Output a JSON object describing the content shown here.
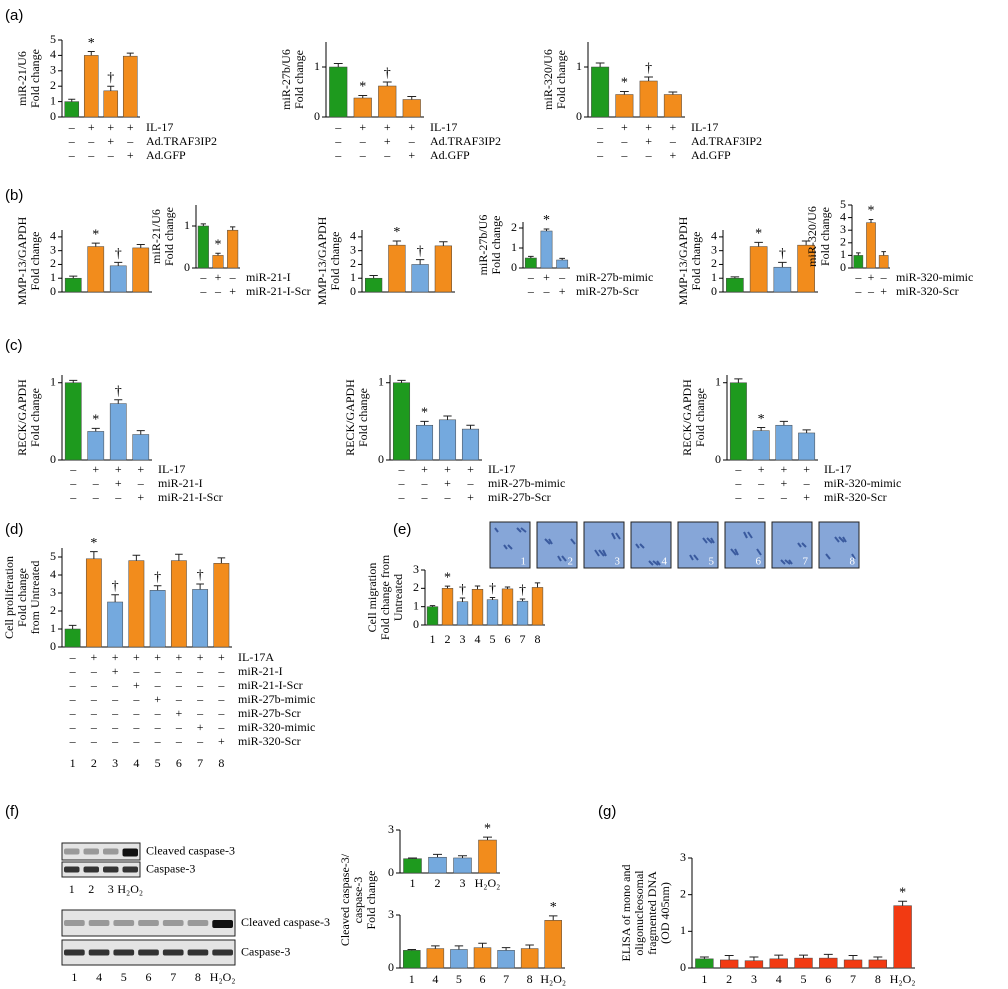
{
  "panels": [
    "(a)",
    "(b)",
    "(c)",
    "(d)",
    "(e)",
    "(f)",
    "(g)"
  ],
  "migration_images": [
    "1",
    "2",
    "3",
    "4",
    "5",
    "6",
    "7",
    "8"
  ],
  "blots": [
    {
      "bands": [
        "Cleaved caspase-3",
        "Caspase-3"
      ],
      "lanes": [
        "1",
        "2",
        "3",
        "H₂O₂"
      ]
    },
    {
      "bands": [
        "Cleaved caspase-3",
        "Caspase-3"
      ],
      "lanes": [
        "1",
        "4",
        "5",
        "6",
        "7",
        "8",
        "H₂O₂"
      ]
    }
  ],
  "chart_data": [
    {
      "type": "bar",
      "ylabel": [
        "miR-21/U6",
        "Fold change"
      ],
      "ylim": [
        0,
        5
      ],
      "yticks": [
        0,
        1,
        2,
        3,
        4,
        5
      ],
      "values": [
        1,
        4,
        1.7,
        3.95
      ],
      "errors": [
        0.15,
        0.25,
        0.3,
        0.2
      ],
      "colors": [
        "#1e9a1e",
        "#f28c1c",
        "#f28c1c",
        "#f28c1c"
      ],
      "annotations": [
        null,
        "*",
        "†",
        null
      ],
      "rows": [
        {
          "label": "IL-17",
          "signs": [
            "–",
            "+",
            "+",
            "+"
          ]
        },
        {
          "label": "Ad.TRAF3IP2",
          "signs": [
            "–",
            "–",
            "+",
            "–"
          ]
        },
        {
          "label": "Ad.GFP",
          "signs": [
            "–",
            "–",
            "–",
            "+"
          ]
        }
      ]
    },
    {
      "type": "bar",
      "ylabel": [
        "miR-27b/U6",
        "Fold change"
      ],
      "ylim": [
        0,
        1.5
      ],
      "yticks": [
        0,
        1
      ],
      "values": [
        1,
        0.38,
        0.62,
        0.35
      ],
      "errors": [
        0.07,
        0.05,
        0.08,
        0.06
      ],
      "colors": [
        "#1e9a1e",
        "#f28c1c",
        "#f28c1c",
        "#f28c1c"
      ],
      "annotations": [
        null,
        "*",
        "†",
        null
      ],
      "rows": [
        {
          "label": "IL-17",
          "signs": [
            "–",
            "+",
            "+",
            "+"
          ]
        },
        {
          "label": "Ad.TRAF3IP2",
          "signs": [
            "–",
            "–",
            "+",
            "–"
          ]
        },
        {
          "label": "Ad.GFP",
          "signs": [
            "–",
            "–",
            "–",
            "+"
          ]
        }
      ]
    },
    {
      "type": "bar",
      "ylabel": [
        "miR-320/U6",
        "Fold change"
      ],
      "ylim": [
        0,
        1.5
      ],
      "yticks": [
        0,
        1
      ],
      "values": [
        1,
        0.45,
        0.72,
        0.45
      ],
      "errors": [
        0.08,
        0.06,
        0.08,
        0.05
      ],
      "colors": [
        "#1e9a1e",
        "#f28c1c",
        "#f28c1c",
        "#f28c1c"
      ],
      "annotations": [
        null,
        "*",
        "†",
        null
      ],
      "rows": [
        {
          "label": "IL-17",
          "signs": [
            "–",
            "+",
            "+",
            "+"
          ]
        },
        {
          "label": "Ad.TRAF3IP2",
          "signs": [
            "–",
            "–",
            "+",
            "–"
          ]
        },
        {
          "label": "Ad.GFP",
          "signs": [
            "–",
            "–",
            "–",
            "+"
          ]
        }
      ]
    },
    {
      "type": "bar",
      "ylabel": [
        "MMP-13/GAPDH",
        "Fold change"
      ],
      "ylim": [
        0,
        4.5
      ],
      "yticks": [
        0,
        1,
        2,
        3,
        4
      ],
      "values": [
        1,
        3.3,
        1.9,
        3.2
      ],
      "errors": [
        0.15,
        0.25,
        0.25,
        0.25
      ],
      "colors": [
        "#1e9a1e",
        "#f28c1c",
        "#74a9de",
        "#f28c1c"
      ],
      "annotations": [
        null,
        "*",
        "†",
        null
      ]
    },
    {
      "type": "bar",
      "ylabel": [
        "miR-21/U6",
        "Fold change"
      ],
      "ylim": [
        0,
        1.5
      ],
      "yticks": [
        0,
        1
      ],
      "values": [
        1,
        0.3,
        0.9
      ],
      "errors": [
        0.05,
        0.05,
        0.08
      ],
      "colors": [
        "#1e9a1e",
        "#f28c1c",
        "#f28c1c"
      ],
      "annotations": [
        null,
        "*",
        null
      ],
      "rows": [
        {
          "label": "miR-21-I",
          "signs": [
            "–",
            "+",
            "–"
          ]
        },
        {
          "label": "miR-21-I-Scr",
          "signs": [
            "–",
            "–",
            "+"
          ]
        }
      ]
    },
    {
      "type": "bar",
      "ylabel": [
        "MMP-13/GAPDH",
        "Fold change"
      ],
      "ylim": [
        0,
        4.5
      ],
      "yticks": [
        0,
        1,
        2,
        3,
        4
      ],
      "values": [
        1,
        3.4,
        2,
        3.35
      ],
      "errors": [
        0.2,
        0.3,
        0.35,
        0.3
      ],
      "colors": [
        "#1e9a1e",
        "#f28c1c",
        "#74a9de",
        "#f28c1c"
      ],
      "annotations": [
        null,
        "*",
        "†",
        null
      ]
    },
    {
      "type": "bar",
      "ylabel": [
        "miR-27b/U6",
        "Fold change"
      ],
      "ylim": [
        0,
        2.3
      ],
      "yticks": [
        0,
        1,
        2
      ],
      "values": [
        0.5,
        1.85,
        0.4
      ],
      "errors": [
        0.08,
        0.1,
        0.08
      ],
      "colors": [
        "#1e9a1e",
        "#74a9de",
        "#74a9de"
      ],
      "annotations": [
        null,
        "*",
        null
      ],
      "rows": [
        {
          "label": "miR-27b-mimic",
          "signs": [
            "–",
            "+",
            "–"
          ]
        },
        {
          "label": "miR-27b-Scr",
          "signs": [
            "–",
            "–",
            "+"
          ]
        }
      ]
    },
    {
      "type": "bar",
      "ylabel": [
        "MMP-13/GAPDH",
        "Fold change"
      ],
      "ylim": [
        0,
        4.5
      ],
      "yticks": [
        0,
        1,
        2,
        3,
        4
      ],
      "values": [
        1,
        3.3,
        1.8,
        3.4
      ],
      "errors": [
        0.1,
        0.3,
        0.35,
        0.3
      ],
      "colors": [
        "#1e9a1e",
        "#f28c1c",
        "#74a9de",
        "#f28c1c"
      ],
      "annotations": [
        null,
        "*",
        "†",
        null
      ]
    },
    {
      "type": "bar",
      "ylabel": [
        "miR-320/U6",
        "Fold change"
      ],
      "ylim": [
        0,
        5
      ],
      "yticks": [
        0,
        1,
        2,
        3,
        4,
        5
      ],
      "values": [
        1,
        3.6,
        1
      ],
      "errors": [
        0.2,
        0.25,
        0.3
      ],
      "colors": [
        "#1e9a1e",
        "#f28c1c",
        "#f28c1c"
      ],
      "annotations": [
        null,
        "*",
        null
      ],
      "rows": [
        {
          "label": "miR-320-mimic",
          "signs": [
            "–",
            "+",
            "–"
          ]
        },
        {
          "label": "miR-320-Scr",
          "signs": [
            "–",
            "–",
            "+"
          ]
        }
      ]
    },
    {
      "type": "bar",
      "ylabel": [
        "RECK/GAPDH",
        "Fold change"
      ],
      "ylim": [
        0,
        1.1
      ],
      "yticks": [
        0,
        1
      ],
      "values": [
        1,
        0.37,
        0.73,
        0.33
      ],
      "errors": [
        0.03,
        0.04,
        0.05,
        0.05
      ],
      "colors": [
        "#1e9a1e",
        "#74a9de",
        "#74a9de",
        "#74a9de"
      ],
      "annotations": [
        null,
        "*",
        "†",
        null
      ],
      "rows": [
        {
          "label": "IL-17",
          "signs": [
            "–",
            "+",
            "+",
            "+"
          ]
        },
        {
          "label": "miR-21-I",
          "signs": [
            "–",
            "–",
            "+",
            "–"
          ]
        },
        {
          "label": "miR-21-I-Scr",
          "signs": [
            "–",
            "–",
            "–",
            "+"
          ]
        }
      ]
    },
    {
      "type": "bar",
      "ylabel": [
        "RECK/GAPDH",
        "Fold change"
      ],
      "ylim": [
        0,
        1.1
      ],
      "yticks": [
        0,
        1
      ],
      "values": [
        1,
        0.45,
        0.52,
        0.4
      ],
      "errors": [
        0.03,
        0.05,
        0.05,
        0.05
      ],
      "colors": [
        "#1e9a1e",
        "#74a9de",
        "#74a9de",
        "#74a9de"
      ],
      "annotations": [
        null,
        "*",
        null,
        null
      ],
      "rows": [
        {
          "label": "IL-17",
          "signs": [
            "–",
            "+",
            "+",
            "+"
          ]
        },
        {
          "label": "miR-27b-mimic",
          "signs": [
            "–",
            "–",
            "+",
            "–"
          ]
        },
        {
          "label": "miR-27b-Scr",
          "signs": [
            "–",
            "–",
            "–",
            "+"
          ]
        }
      ]
    },
    {
      "type": "bar",
      "ylabel": [
        "RECK/GAPDH",
        "Fold change"
      ],
      "ylim": [
        0,
        1.1
      ],
      "yticks": [
        0,
        1
      ],
      "values": [
        1,
        0.38,
        0.45,
        0.35
      ],
      "errors": [
        0.05,
        0.04,
        0.05,
        0.04
      ],
      "colors": [
        "#1e9a1e",
        "#74a9de",
        "#74a9de",
        "#74a9de"
      ],
      "annotations": [
        null,
        "*",
        null,
        null
      ],
      "rows": [
        {
          "label": "IL-17",
          "signs": [
            "–",
            "+",
            "+",
            "+"
          ]
        },
        {
          "label": "miR-320-mimic",
          "signs": [
            "–",
            "–",
            "+",
            "–"
          ]
        },
        {
          "label": "miR-320-Scr",
          "signs": [
            "–",
            "–",
            "–",
            "+"
          ]
        }
      ]
    },
    {
      "type": "bar",
      "ylabel": [
        "Cell proliferation",
        "Fold change",
        "from Untreated"
      ],
      "ylim": [
        0,
        5.5
      ],
      "yticks": [
        0,
        1,
        2,
        3,
        4,
        5
      ],
      "categories": [
        "1",
        "2",
        "3",
        "4",
        "5",
        "6",
        "7",
        "8"
      ],
      "values": [
        1,
        4.9,
        2.5,
        4.8,
        3.15,
        4.8,
        3.2,
        4.65
      ],
      "errors": [
        0.2,
        0.4,
        0.4,
        0.3,
        0.25,
        0.35,
        0.3,
        0.3
      ],
      "colors": [
        "#1e9a1e",
        "#f28c1c",
        "#74a9de",
        "#f28c1c",
        "#74a9de",
        "#f28c1c",
        "#74a9de",
        "#f28c1c"
      ],
      "annotations": [
        null,
        "*",
        "†",
        null,
        "†",
        null,
        "†",
        null
      ],
      "rows": [
        {
          "label": "IL-17A",
          "signs": [
            "–",
            "+",
            "+",
            "+",
            "+",
            "+",
            "+",
            "+"
          ]
        },
        {
          "label": "miR-21-I",
          "signs": [
            "–",
            "–",
            "+",
            "–",
            "–",
            "–",
            "–",
            "–"
          ]
        },
        {
          "label": "miR-21-I-Scr",
          "signs": [
            "–",
            "–",
            "–",
            "+",
            "–",
            "–",
            "–",
            "–"
          ]
        },
        {
          "label": "miR-27b-mimic",
          "signs": [
            "–",
            "–",
            "–",
            "–",
            "+",
            "–",
            "–",
            "–"
          ]
        },
        {
          "label": "miR-27b-Scr",
          "signs": [
            "–",
            "–",
            "–",
            "–",
            "–",
            "+",
            "–",
            "–"
          ]
        },
        {
          "label": "miR-320-mimic",
          "signs": [
            "–",
            "–",
            "–",
            "–",
            "–",
            "–",
            "+",
            "–"
          ]
        },
        {
          "label": "miR-320-Scr",
          "signs": [
            "–",
            "–",
            "–",
            "–",
            "–",
            "–",
            "–",
            "+"
          ]
        }
      ]
    },
    {
      "type": "bar",
      "ylabel": [
        "Cell migration",
        "Fold change from",
        "Untreated"
      ],
      "ylim": [
        0,
        3
      ],
      "yticks": [
        0,
        1,
        2,
        3
      ],
      "categories": [
        "1",
        "2",
        "3",
        "4",
        "5",
        "6",
        "7",
        "8"
      ],
      "values": [
        1,
        2,
        1.27,
        1.95,
        1.38,
        1.97,
        1.3,
        2.05
      ],
      "errors": [
        0.06,
        0.12,
        0.2,
        0.18,
        0.12,
        0.1,
        0.12,
        0.25
      ],
      "colors": [
        "#1e9a1e",
        "#f28c1c",
        "#74a9de",
        "#f28c1c",
        "#74a9de",
        "#f28c1c",
        "#74a9de",
        "#f28c1c"
      ],
      "annotations": [
        null,
        "*",
        "†",
        null,
        "†",
        null,
        "†",
        null
      ]
    },
    {
      "type": "bar",
      "ylabel": [
        "Cleaved caspase-3/",
        "caspase-3",
        "Fold change"
      ],
      "ylim": [
        0,
        3
      ],
      "yticks": [
        0,
        3
      ],
      "categories": [
        "1",
        "2",
        "3",
        "H₂O₂"
      ],
      "values": [
        1,
        1.1,
        1.05,
        2.3
      ],
      "errors": [
        0.05,
        0.2,
        0.15,
        0.2
      ],
      "colors": [
        "#1e9a1e",
        "#74a9de",
        "#74a9de",
        "#f28c1c"
      ],
      "annotations": [
        null,
        null,
        null,
        "*"
      ]
    },
    {
      "type": "bar",
      "ylim": [
        0,
        3
      ],
      "yticks": [
        0,
        3
      ],
      "categories": [
        "1",
        "4",
        "5",
        "6",
        "7",
        "8",
        "H₂O₂"
      ],
      "values": [
        1,
        1.1,
        1.05,
        1.15,
        1,
        1.1,
        2.7
      ],
      "errors": [
        0.05,
        0.15,
        0.2,
        0.25,
        0.15,
        0.2,
        0.25
      ],
      "colors": [
        "#1e9a1e",
        "#f28c1c",
        "#74a9de",
        "#f28c1c",
        "#74a9de",
        "#f28c1c",
        "#f28c1c"
      ],
      "annotations": [
        null,
        null,
        null,
        null,
        null,
        null,
        "*"
      ]
    },
    {
      "type": "bar",
      "ylabel": [
        "ELISA of mono and",
        "oligonucleosomal",
        "fragmented DNA",
        "(OD 405nm)"
      ],
      "ylim": [
        0,
        3
      ],
      "yticks": [
        0,
        1,
        2,
        3
      ],
      "categories": [
        "1",
        "2",
        "3",
        "4",
        "5",
        "6",
        "7",
        "8",
        "H₂O₂"
      ],
      "values": [
        0.25,
        0.22,
        0.2,
        0.25,
        0.27,
        0.27,
        0.22,
        0.22,
        1.7
      ],
      "errors": [
        0.05,
        0.12,
        0.1,
        0.1,
        0.08,
        0.1,
        0.12,
        0.08,
        0.12
      ],
      "colors": [
        "#1e9a1e",
        "#f23a12",
        "#f23a12",
        "#f23a12",
        "#f23a12",
        "#f23a12",
        "#f23a12",
        "#f23a12",
        "#f23a12"
      ],
      "annotations": [
        null,
        null,
        null,
        null,
        null,
        null,
        null,
        null,
        "*"
      ]
    }
  ]
}
